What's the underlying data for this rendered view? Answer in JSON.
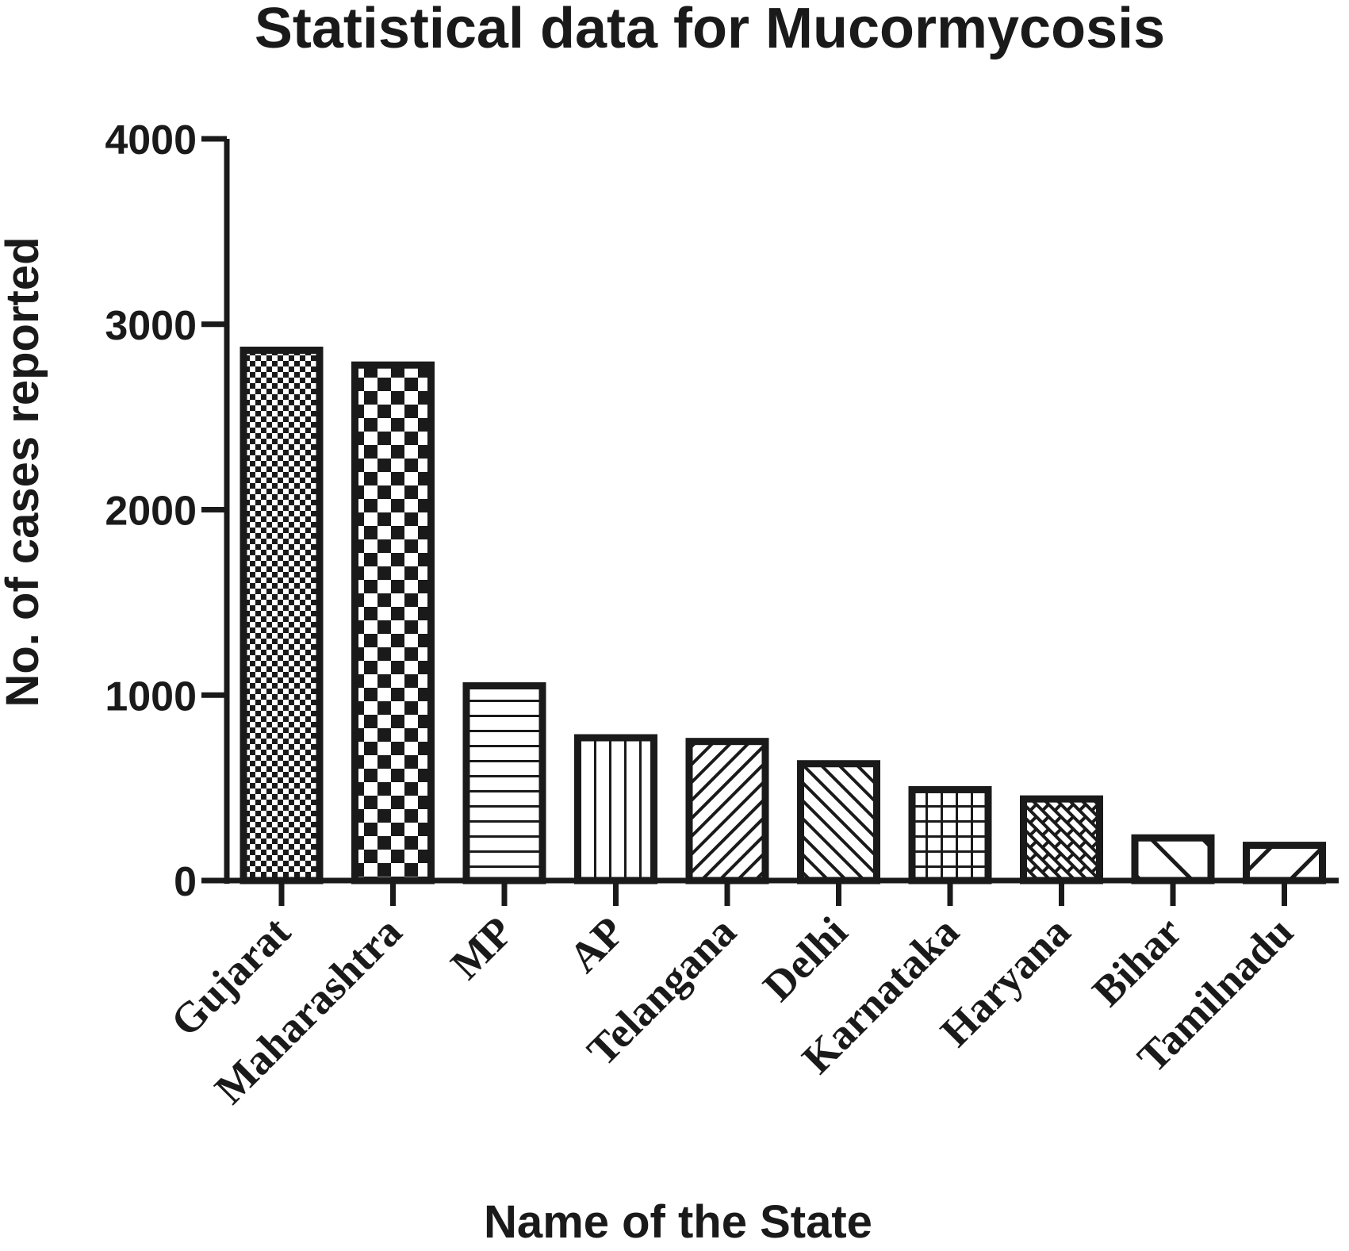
{
  "chart_data": {
    "type": "bar",
    "title": "Statistical data for Mucormycosis",
    "xlabel": "Name of the State",
    "ylabel": "No. of cases reported",
    "categories": [
      "Gujarat",
      "Maharashtra",
      "MP",
      "AP",
      "Telangana",
      "Delhi",
      "Karnataka",
      "Haryana",
      "Bihar",
      "Tamilnadu"
    ],
    "values": [
      2860,
      2780,
      1050,
      770,
      750,
      630,
      490,
      440,
      230,
      190
    ],
    "ylim": [
      0,
      4000
    ],
    "yticks": [
      "0",
      "1000",
      "2000",
      "3000",
      "4000"
    ],
    "grid": false,
    "legend": "none",
    "colors": {
      "ink": "#1a1a1a",
      "background": "#ffffff"
    },
    "fill_patterns": [
      "fine-checker",
      "coarse-checker",
      "horizontal-lines",
      "vertical-lines",
      "diagonal-up",
      "diagonal-down",
      "grid",
      "brick",
      "wide-diagonal-down",
      "wide-diagonal-up"
    ]
  }
}
